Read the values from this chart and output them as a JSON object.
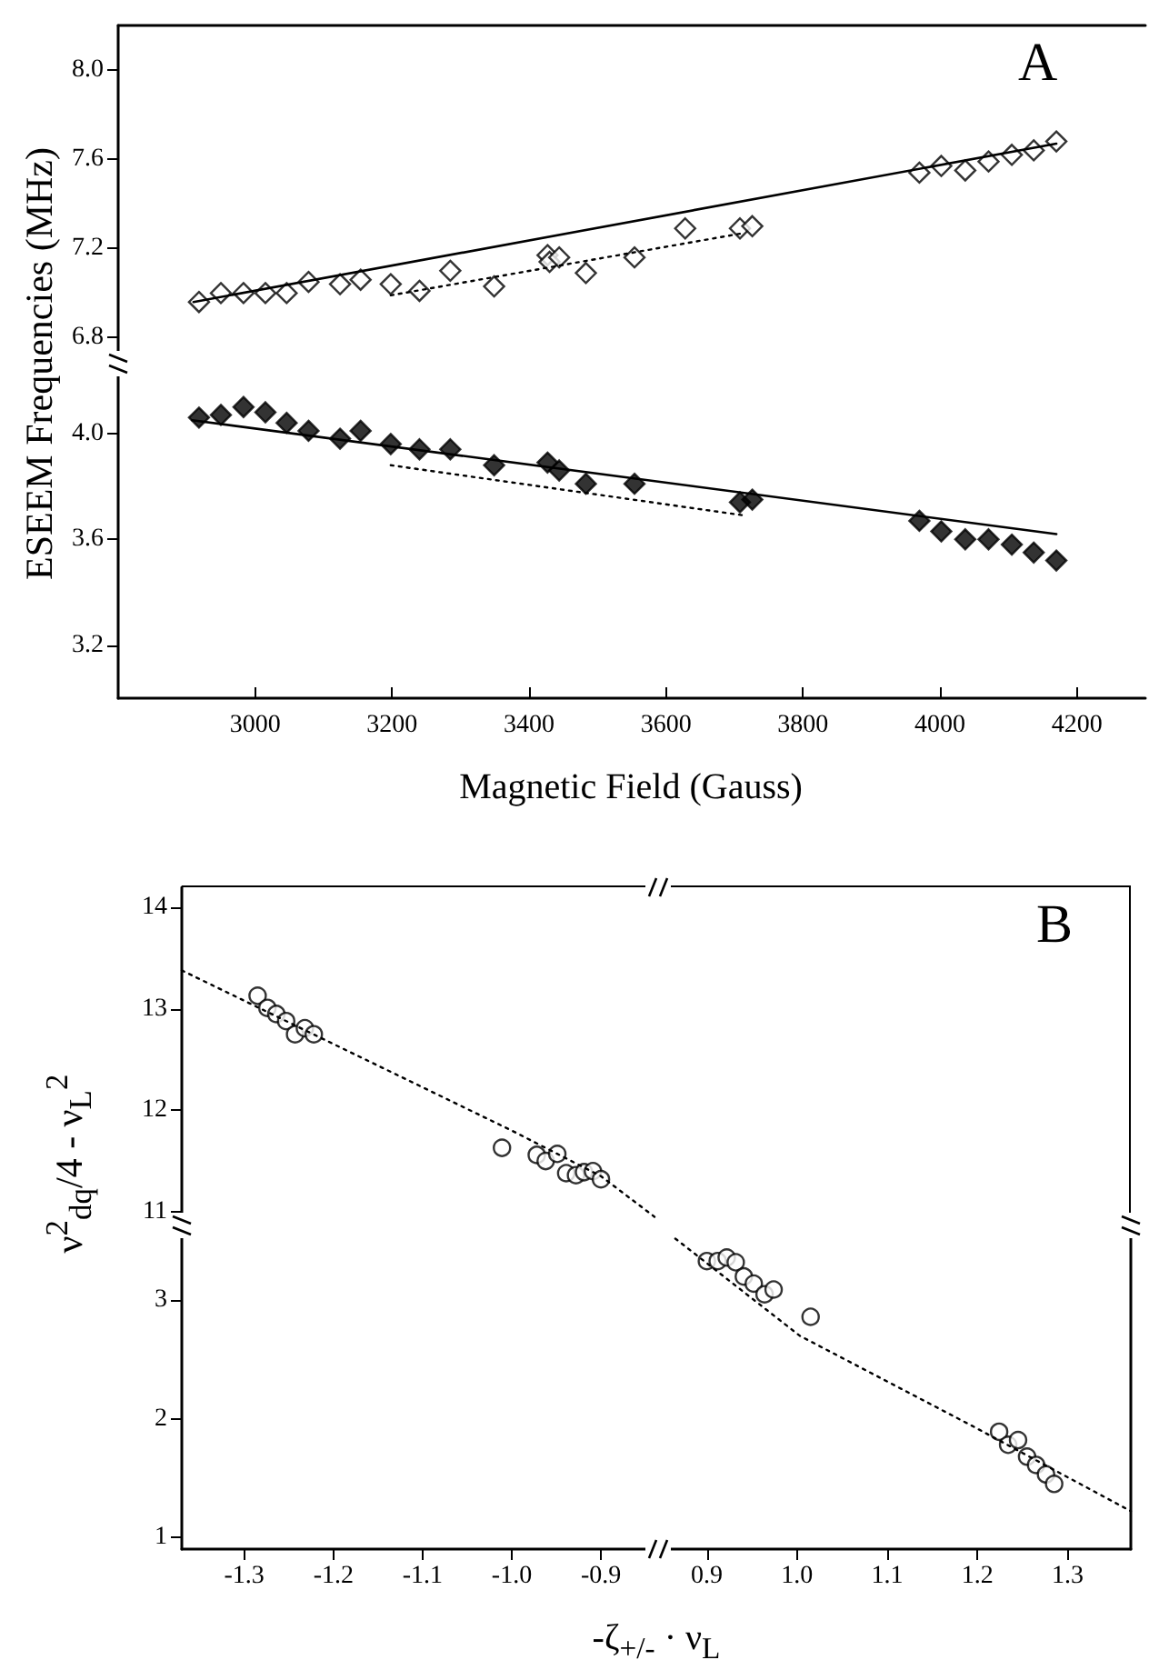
{
  "chart_data": [
    {
      "type": "scatter",
      "annotations": [
        "A"
      ],
      "ylabel": "ESEEM Frequencies (MHz)",
      "xlim": [
        2800,
        4300
      ],
      "ylim": [
        6.7,
        8.2
      ],
      "yticks": [
        6.8,
        7.2,
        7.6,
        {
          "value": 8,
          "label": "8.0"
        }
      ],
      "tick_labels": "y",
      "series": [
        {
          "color": "#ffffff",
          "marker": "diamond",
          "x": [
            2918,
            2950,
            2983,
            3015,
            3046,
            3078,
            3124,
            3154,
            3198,
            3240,
            3285,
            3349,
            3427,
            3430,
            3444,
            3483,
            3554,
            3628,
            3708,
            3726,
            3970,
            4002,
            4037,
            4071,
            4105,
            4137,
            4170
          ],
          "values": [
            6.96,
            7.0,
            7.0,
            7.0,
            7.0,
            7.05,
            7.04,
            7.06,
            7.04,
            7.01,
            7.1,
            7.03,
            7.17,
            7.14,
            7.16,
            7.09,
            7.16,
            7.29,
            7.29,
            7.3,
            7.54,
            7.57,
            7.55,
            7.59,
            7.62,
            7.64,
            7.68
          ]
        },
        {
          "type": "line",
          "color": "#000000",
          "marker": "none",
          "line_style": "solid",
          "x": [
            2910,
            4170
          ],
          "values": [
            6.96,
            7.67
          ]
        },
        {
          "type": "line",
          "color": "#000000",
          "marker": "none",
          "line_style": "dotted",
          "x": [
            3198,
            3715
          ],
          "values": [
            6.99,
            7.27
          ]
        }
      ]
    },
    {
      "type": "scatter",
      "xlabel": "Magnetic Field (Gauss)",
      "xlim": [
        2800,
        4300
      ],
      "xticks": [
        3000,
        3200,
        3400,
        3600,
        3800,
        4000,
        4200
      ],
      "ylim": [
        3.0,
        4.25
      ],
      "yticks": [
        3.2,
        3.6,
        {
          "value": 4,
          "label": "4.0"
        }
      ],
      "series": [
        {
          "color": "#000000",
          "marker": "diamond",
          "x": [
            2918,
            2950,
            2983,
            3015,
            3046,
            3078,
            3124,
            3154,
            3198,
            3240,
            3285,
            3349,
            3427,
            3444,
            3483,
            3554,
            3708,
            3726,
            3970,
            4002,
            4037,
            4071,
            4105,
            4137,
            4170
          ],
          "values": [
            4.06,
            4.07,
            4.1,
            4.08,
            4.04,
            4.01,
            3.98,
            4.01,
            3.96,
            3.94,
            3.94,
            3.88,
            3.89,
            3.86,
            3.81,
            3.81,
            3.74,
            3.75,
            3.67,
            3.63,
            3.6,
            3.6,
            3.58,
            3.55,
            3.52
          ]
        },
        {
          "type": "line",
          "color": "#000000",
          "marker": "none",
          "line_style": "solid",
          "x": [
            2908,
            4170
          ],
          "values": [
            4.05,
            3.62
          ]
        },
        {
          "type": "line",
          "color": "#000000",
          "marker": "none",
          "line_style": "dotted",
          "x": [
            3198,
            3715
          ],
          "values": [
            3.88,
            3.69
          ]
        }
      ]
    },
    {
      "type": "scatter",
      "annotations": [
        "B"
      ],
      "ylabel": "ν$^{2}$$_{dq}$/4 - ν$_{L}$$^{2}$",
      "xlim": [
        -1.37,
        -0.84
      ],
      "ylim": [
        10.9,
        14.2
      ],
      "yticks": [
        11,
        12,
        13,
        14
      ],
      "tick_labels": "y",
      "series": [
        {
          "color": "#ffffff",
          "marker": "circle",
          "x": [
            -1.285,
            -1.274,
            -1.264,
            -1.253,
            -1.243,
            -1.232,
            -1.222,
            -1.011,
            -0.972,
            -0.962,
            -0.949,
            -0.939,
            -0.928,
            -0.919,
            -0.909,
            -0.9
          ],
          "values": [
            13.13,
            13.01,
            12.95,
            12.88,
            12.75,
            12.81,
            12.75,
            11.63,
            11.56,
            11.5,
            11.57,
            11.38,
            11.36,
            11.39,
            11.4,
            11.32
          ]
        },
        {
          "type": "line",
          "color": "#000000",
          "marker": "none",
          "line_style": "dotted",
          "x": [
            -1.37,
            -1.0,
            -0.9,
            -0.84
          ],
          "values": [
            13.38,
            11.8,
            11.35,
            10.95
          ]
        }
      ]
    },
    {
      "type": "scatter",
      "xlabel": "-ζ$_{+/-}$ · ν$_{L}$",
      "xlim": [
        -1.37,
        -0.84
      ],
      "xticks": [
        -1.3,
        -1.2,
        -1.1,
        {
          "value": -1,
          "label": "-1.0"
        },
        -0.9
      ],
      "ylim": [
        0.9,
        3.6
      ],
      "yticks": [
        1,
        2,
        3
      ]
    },
    {
      "type": "scatter",
      "xlim": [
        0.85,
        1.37
      ],
      "xticks": [
        0.9,
        {
          "value": 1,
          "label": "1.0"
        },
        1.1,
        1.2,
        1.3
      ],
      "ylim": [
        0.9,
        3.6
      ],
      "tick_labels": "x",
      "series": [
        {
          "color": "#ffffff",
          "marker": "circle",
          "x": [
            0.9,
            0.912,
            0.922,
            0.932,
            0.941,
            0.952,
            0.964,
            0.974,
            1.015,
            1.224,
            1.234,
            1.245,
            1.255,
            1.265,
            1.276,
            1.285
          ],
          "values": [
            3.33,
            3.33,
            3.36,
            3.32,
            3.2,
            3.14,
            3.05,
            3.09,
            2.86,
            1.89,
            1.78,
            1.82,
            1.68,
            1.61,
            1.53,
            1.45
          ]
        },
        {
          "type": "line",
          "color": "#000000",
          "marker": "none",
          "line_style": "dotted",
          "x": [
            0.865,
            1.003,
            1.194,
            1.37
          ],
          "values": [
            3.52,
            2.7,
            1.94,
            1.22
          ]
        }
      ]
    }
  ]
}
